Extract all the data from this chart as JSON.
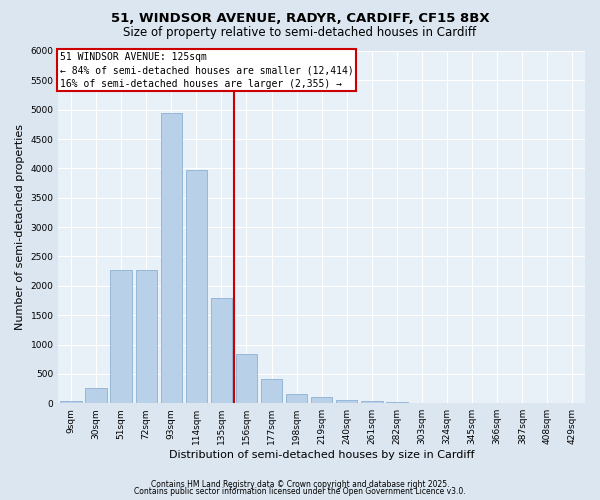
{
  "title_line1": "51, WINDSOR AVENUE, RADYR, CARDIFF, CF15 8BX",
  "title_line2": "Size of property relative to semi-detached houses in Cardiff",
  "xlabel": "Distribution of semi-detached houses by size in Cardiff",
  "ylabel": "Number of semi-detached properties",
  "categories": [
    "9sqm",
    "30sqm",
    "51sqm",
    "72sqm",
    "93sqm",
    "114sqm",
    "135sqm",
    "156sqm",
    "177sqm",
    "198sqm",
    "219sqm",
    "240sqm",
    "261sqm",
    "282sqm",
    "303sqm",
    "324sqm",
    "345sqm",
    "366sqm",
    "387sqm",
    "408sqm",
    "429sqm"
  ],
  "values": [
    30,
    260,
    2270,
    2270,
    4950,
    3970,
    1800,
    840,
    420,
    165,
    100,
    55,
    30,
    20,
    10,
    5,
    5,
    5,
    0,
    0,
    5
  ],
  "bar_color": "#b8d0e8",
  "bar_edgecolor": "#7fa8cc",
  "vline_color": "#cc0000",
  "vline_x": 6.5,
  "annotation_title": "51 WINDSOR AVENUE: 125sqm",
  "annotation_line1": "← 84% of semi-detached houses are smaller (12,414)",
  "annotation_line2": "16% of semi-detached houses are larger (2,355) →",
  "annotation_box_edgecolor": "#cc0000",
  "ylim": [
    0,
    6000
  ],
  "yticks": [
    0,
    500,
    1000,
    1500,
    2000,
    2500,
    3000,
    3500,
    4000,
    4500,
    5000,
    5500,
    6000
  ],
  "bg_color": "#dce6f0",
  "plot_bg_color": "#e8f0f8",
  "grid_color": "#c8d4e0",
  "footnote1": "Contains HM Land Registry data © Crown copyright and database right 2025.",
  "footnote2": "Contains public sector information licensed under the Open Government Licence v3.0.",
  "title_fontsize": 9.5,
  "subtitle_fontsize": 8.5,
  "tick_fontsize": 6.5,
  "label_fontsize": 8,
  "annot_fontsize": 7,
  "footnote_fontsize": 5.5
}
